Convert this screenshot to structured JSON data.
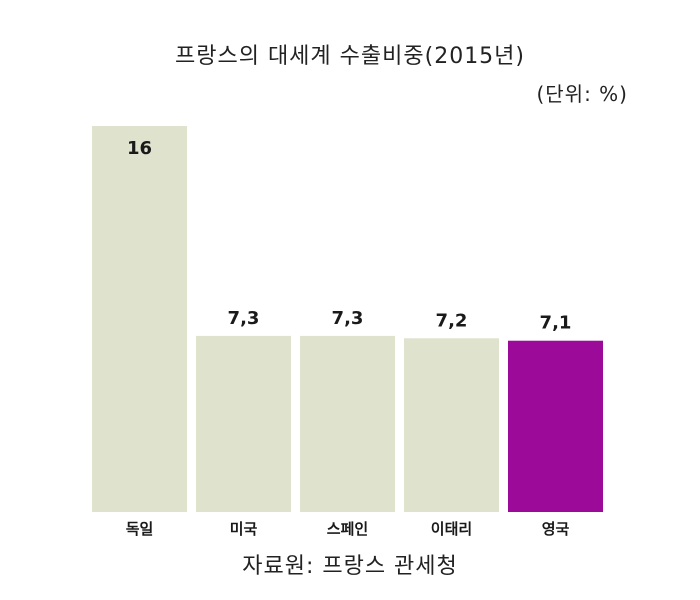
{
  "chart_data": {
    "type": "bar",
    "title": "프랑스의 대세계 수출비중(2015년)",
    "unit": "(단위: %)",
    "categories": [
      "독일",
      "미국",
      "스페인",
      "이태리",
      "영국"
    ],
    "values": [
      16,
      7.3,
      7.3,
      7.2,
      7.1
    ],
    "value_labels": [
      "16",
      "7,3",
      "7,3",
      "7,2",
      "7,1"
    ],
    "ylim": [
      0,
      16
    ],
    "grid": false,
    "colors": {
      "default": "#dfe2cc",
      "highlight": "#9c0a9a",
      "highlight_category": "영국"
    },
    "source": "자료원: 프랑스 관세청"
  }
}
